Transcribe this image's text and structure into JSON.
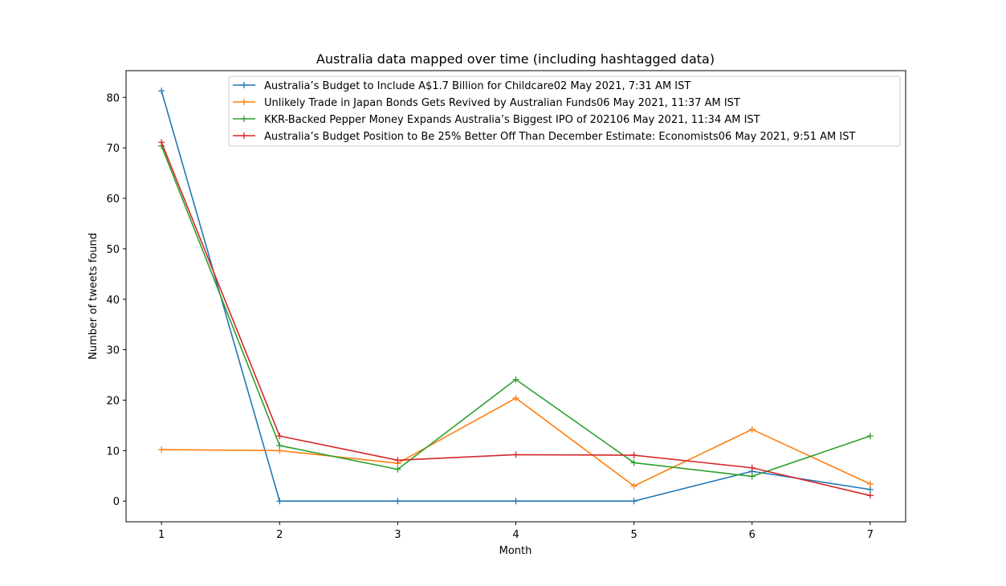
{
  "chart_data": {
    "type": "line",
    "title": "Australia data mapped over time (including hashtagged data)",
    "xlabel": "Month",
    "ylabel": "Number of tweets found",
    "x": [
      1,
      2,
      3,
      4,
      5,
      6,
      7
    ],
    "xticks": [
      "1",
      "2",
      "3",
      "4",
      "5",
      "6",
      "7"
    ],
    "yticks": [
      "0",
      "10",
      "20",
      "30",
      "40",
      "50",
      "60",
      "70",
      "80"
    ],
    "xlim": [
      0.7,
      7.3
    ],
    "ylim": [
      -4.1,
      85.3
    ],
    "grid": false,
    "legend_position": "top-right",
    "marker": "+",
    "series": [
      {
        "name": "Australia’s Budget to Include A$1.7 Billion for Childcare02 May 2021, 7:31 AM IST",
        "color": "#1f77b4",
        "values": [
          81.3,
          0,
          0,
          0,
          0,
          5.9,
          2.3
        ]
      },
      {
        "name": "Unlikely Trade in Japan Bonds Gets Revived by Australian Funds06 May 2021, 11:37 AM IST",
        "color": "#ff7f0e",
        "values": [
          10.2,
          10.0,
          7.5,
          20.4,
          3.0,
          14.2,
          3.4
        ]
      },
      {
        "name": "KKR-Backed Pepper Money Expands Australia’s Biggest IPO of 202106 May 2021, 11:34 AM IST",
        "color": "#2ca02c",
        "values": [
          70.4,
          11.0,
          6.3,
          24.1,
          7.6,
          4.9,
          12.9
        ]
      },
      {
        "name": "Australia’s Budget Position to Be 25% Better Off Than December Estimate: Economists06 May 2021, 9:51 AM IST",
        "color": "#d62728",
        "values": [
          71.1,
          12.9,
          8.1,
          9.2,
          9.1,
          6.6,
          1.1
        ]
      }
    ]
  }
}
